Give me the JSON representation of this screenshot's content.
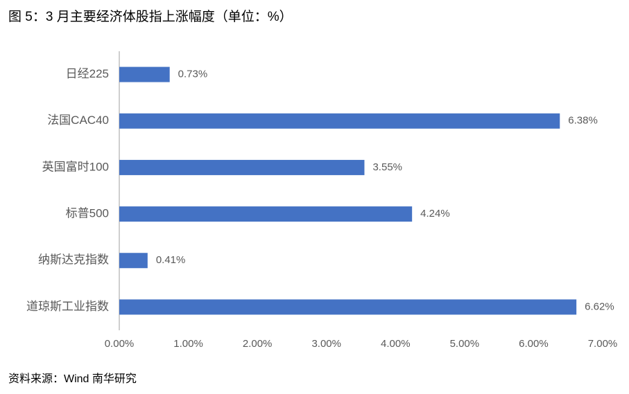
{
  "chart_data": {
    "type": "bar",
    "orientation": "horizontal",
    "title": "图 5：3 月主要经济体股指上涨幅度（单位：%）",
    "source": "资料来源：Wind  南华研究",
    "categories": [
      "日经225",
      "法国CAC40",
      "英国富时100",
      "标普500",
      "纳斯达克指数",
      "道琼斯工业指数"
    ],
    "values": [
      0.73,
      6.38,
      3.55,
      4.24,
      0.41,
      6.62
    ],
    "value_labels": [
      "0.73%",
      "6.38%",
      "3.55%",
      "4.24%",
      "0.41%",
      "6.62%"
    ],
    "color": "#4472c4",
    "xlim": [
      0,
      7
    ],
    "xticks": [
      {
        "value": 0,
        "label": "0.00%"
      },
      {
        "value": 1,
        "label": "1.00%"
      },
      {
        "value": 2,
        "label": "2.00%"
      },
      {
        "value": 3,
        "label": "3.00%"
      },
      {
        "value": 4,
        "label": "4.00%"
      },
      {
        "value": 5,
        "label": "5.00%"
      },
      {
        "value": 6,
        "label": "6.00%"
      },
      {
        "value": 7,
        "label": "7.00%"
      }
    ],
    "grid": false
  }
}
